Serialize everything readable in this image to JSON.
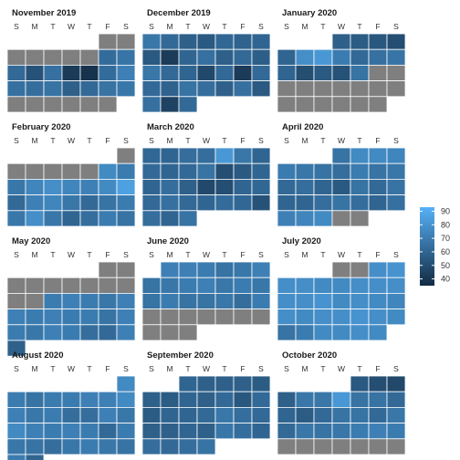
{
  "chart_data": {
    "type": "heatmap",
    "weekday_labels": [
      "S",
      "M",
      "T",
      "W",
      "T",
      "F",
      "S"
    ],
    "missing_color": "#7f7f7f",
    "colorscale": {
      "low": "#132b43",
      "high": "#56b1f7",
      "min": 35,
      "max": 93
    },
    "legend": {
      "ticks": [
        40,
        50,
        60,
        70,
        80,
        90
      ],
      "placement": "right"
    },
    "months": [
      {
        "title": "November 2019",
        "start_weekday": 5,
        "values": [
          null,
          null,
          null,
          null,
          null,
          null,
          null,
          63,
          67,
          62,
          52,
          65,
          42,
          38,
          63,
          72,
          65,
          64,
          66,
          58,
          62,
          66,
          68,
          null,
          null,
          null,
          null,
          null,
          null
        ]
      },
      {
        "title": "December 2019",
        "start_weekday": 0,
        "values": [
          68,
          62,
          58,
          55,
          61,
          59,
          60,
          55,
          42,
          60,
          65,
          58,
          62,
          57,
          68,
          62,
          60,
          48,
          62,
          42,
          62,
          62,
          59,
          66,
          64,
          58,
          65,
          55,
          65,
          45,
          62
        ]
      },
      {
        "title": "January 2020",
        "start_weekday": 3,
        "values": [
          58,
          56,
          54,
          50,
          60,
          78,
          82,
          70,
          62,
          65,
          67,
          60,
          50,
          55,
          52,
          66,
          null,
          null,
          null,
          null,
          null,
          null,
          null,
          null,
          null,
          null,
          null,
          null,
          null,
          null,
          null
        ]
      },
      {
        "title": "February 2020",
        "start_weekday": 6,
        "values": [
          null,
          null,
          null,
          null,
          null,
          null,
          76,
          70,
          68,
          74,
          78,
          74,
          72,
          76,
          86,
          62,
          72,
          74,
          68,
          62,
          66,
          70,
          68,
          78,
          68,
          60,
          64,
          70,
          66
        ]
      },
      {
        "title": "March 2020",
        "start_weekday": 0,
        "values": [
          61,
          60,
          64,
          64,
          82,
          68,
          60,
          62,
          60,
          62,
          66,
          50,
          55,
          60,
          60,
          64,
          58,
          48,
          50,
          60,
          61,
          62,
          65,
          62,
          60,
          63,
          61,
          52,
          64,
          60,
          66
        ]
      },
      {
        "title": "April 2020",
        "start_weekday": 3,
        "values": [
          66,
          76,
          76,
          74,
          70,
          68,
          66,
          64,
          70,
          66,
          68,
          62,
          64,
          60,
          55,
          66,
          62,
          66,
          60,
          60,
          64,
          66,
          64,
          60,
          65,
          72,
          74,
          76,
          null,
          null
        ]
      },
      {
        "title": "May 2020",
        "start_weekday": 5,
        "values": [
          null,
          null,
          null,
          null,
          null,
          null,
          null,
          null,
          null,
          null,
          null,
          70,
          72,
          70,
          68,
          72,
          72,
          70,
          72,
          70,
          70,
          66,
          72,
          70,
          68,
          72,
          70,
          64,
          62,
          72,
          58
        ]
      },
      {
        "title": "June 2020",
        "start_weekday": 1,
        "values": [
          72,
          72,
          70,
          66,
          68,
          72,
          66,
          68,
          70,
          72,
          68,
          70,
          68,
          66,
          70,
          66,
          66,
          68,
          64,
          70,
          null,
          null,
          null,
          null,
          null,
          null,
          null,
          null,
          null,
          null
        ]
      },
      {
        "title": "July 2020",
        "start_weekday": 3,
        "values": [
          null,
          null,
          78,
          80,
          78,
          78,
          76,
          76,
          78,
          78,
          78,
          78,
          78,
          80,
          76,
          78,
          76,
          74,
          78,
          76,
          78,
          78,
          80,
          78,
          76,
          66,
          70,
          76,
          76,
          78,
          76
        ]
      },
      {
        "title": "August 2020",
        "start_weekday": 6,
        "values": [
          76,
          70,
          66,
          70,
          70,
          72,
          72,
          76,
          72,
          68,
          70,
          64,
          64,
          72,
          68,
          76,
          72,
          70,
          72,
          70,
          62,
          70,
          68,
          66,
          64,
          68,
          70,
          68,
          66,
          70,
          60
        ]
      },
      {
        "title": "September 2020",
        "start_weekday": 2,
        "values": [
          60,
          58,
          58,
          58,
          56,
          58,
          56,
          60,
          58,
          62,
          54,
          62,
          56,
          60,
          60,
          62,
          68,
          64,
          62,
          58,
          58,
          60,
          58,
          68,
          64,
          60,
          64,
          62,
          64,
          66
        ]
      },
      {
        "title": "October 2020",
        "start_weekday": 4,
        "values": [
          55,
          50,
          48,
          58,
          68,
          68,
          82,
          66,
          66,
          62,
          60,
          56,
          62,
          66,
          66,
          62,
          68,
          62,
          68,
          66,
          68,
          70,
          72,
          70,
          null,
          null,
          null,
          null,
          null,
          null,
          null
        ]
      }
    ]
  }
}
